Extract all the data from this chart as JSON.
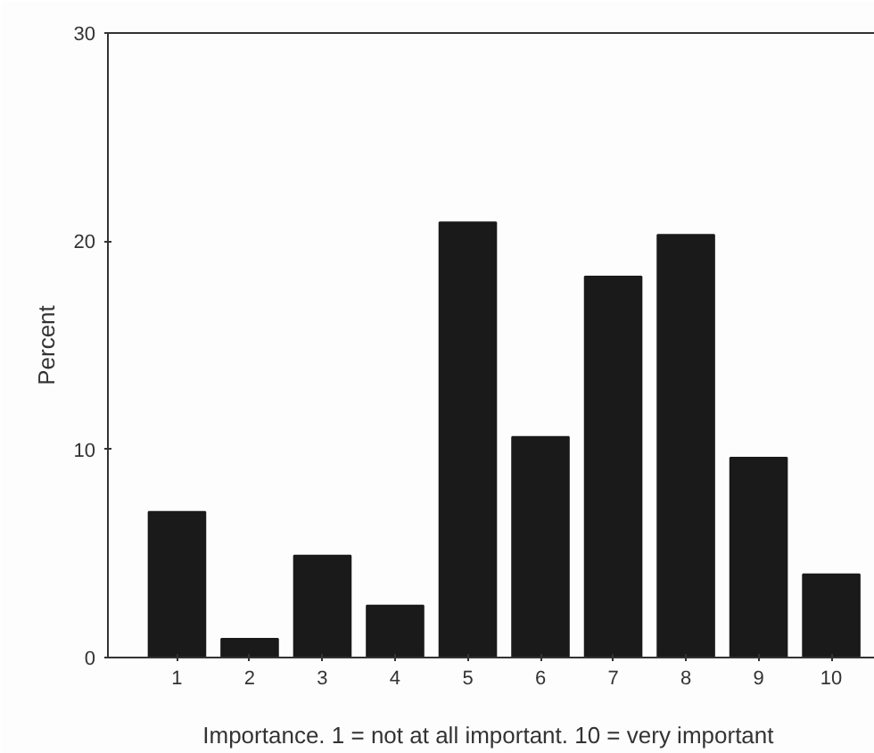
{
  "chart_data": {
    "type": "bar",
    "xlabel": "Importance. 1 = not at all important.  10 = very important",
    "ylabel": "Percent",
    "categories": [
      "1",
      "2",
      "3",
      "4",
      "5",
      "6",
      "7",
      "8",
      "9",
      "10"
    ],
    "values": [
      7.0,
      0.9,
      4.9,
      2.5,
      20.9,
      10.6,
      18.3,
      20.3,
      9.6,
      4.0
    ],
    "color": "#1a1a1a",
    "ylim": [
      0,
      30
    ],
    "yticks": [
      0,
      10,
      20,
      30
    ],
    "grid": false
  }
}
